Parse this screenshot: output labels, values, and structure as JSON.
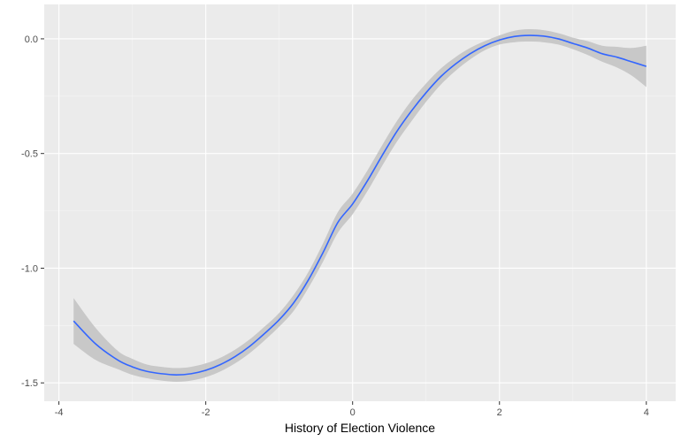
{
  "chart_data": {
    "type": "line",
    "title": "",
    "xlabel": "History of Election Violence",
    "ylabel": "",
    "xlim": [
      -4.2,
      4.4
    ],
    "ylim": [
      -1.58,
      0.15
    ],
    "xticks": [
      -4,
      -2,
      0,
      2,
      4
    ],
    "yticks": [
      0.0,
      -0.5,
      -1.0,
      -1.5
    ],
    "xtick_labels": [
      "-4",
      "-2",
      "0",
      "2",
      "4"
    ],
    "ytick_labels": [
      "0.0",
      "-0.5",
      "-1.0",
      "-1.5"
    ],
    "grid": true,
    "legend": "none",
    "colors": {
      "panel": "#ebebeb",
      "grid_major": "#ffffff",
      "line": "#3366ff",
      "ribbon": "#c8c8c8",
      "tick_mark": "#333333"
    },
    "series": [
      {
        "x": [
          -3.8,
          -3.5,
          -3.2,
          -3.0,
          -2.8,
          -2.6,
          -2.4,
          -2.2,
          -2.0,
          -1.8,
          -1.6,
          -1.4,
          -1.2,
          -1.0,
          -0.8,
          -0.6,
          -0.4,
          -0.2,
          0.0,
          0.2,
          0.4,
          0.6,
          0.8,
          1.0,
          1.2,
          1.4,
          1.6,
          1.8,
          2.0,
          2.2,
          2.4,
          2.6,
          2.8,
          3.0,
          3.2,
          3.4,
          3.6,
          3.8,
          4.0
        ],
        "y": [
          -1.23,
          -1.33,
          -1.4,
          -1.43,
          -1.45,
          -1.46,
          -1.465,
          -1.46,
          -1.445,
          -1.42,
          -1.385,
          -1.34,
          -1.285,
          -1.225,
          -1.15,
          -1.05,
          -0.93,
          -0.8,
          -0.72,
          -0.62,
          -0.51,
          -0.405,
          -0.315,
          -0.235,
          -0.165,
          -0.11,
          -0.065,
          -0.03,
          -0.005,
          0.01,
          0.015,
          0.012,
          0.0,
          -0.02,
          -0.04,
          -0.065,
          -0.08,
          -0.1,
          -0.12
        ],
        "lower": [
          -1.33,
          -1.4,
          -1.44,
          -1.465,
          -1.48,
          -1.49,
          -1.495,
          -1.49,
          -1.475,
          -1.45,
          -1.415,
          -1.37,
          -1.315,
          -1.255,
          -1.185,
          -1.085,
          -0.97,
          -0.845,
          -0.765,
          -0.665,
          -0.555,
          -0.45,
          -0.36,
          -0.275,
          -0.2,
          -0.14,
          -0.09,
          -0.05,
          -0.025,
          -0.015,
          -0.012,
          -0.015,
          -0.025,
          -0.045,
          -0.07,
          -0.1,
          -0.125,
          -0.16,
          -0.21
        ],
        "upper": [
          -1.13,
          -1.26,
          -1.36,
          -1.395,
          -1.42,
          -1.43,
          -1.435,
          -1.43,
          -1.415,
          -1.39,
          -1.355,
          -1.31,
          -1.255,
          -1.195,
          -1.115,
          -1.015,
          -0.89,
          -0.755,
          -0.675,
          -0.575,
          -0.465,
          -0.36,
          -0.27,
          -0.195,
          -0.13,
          -0.08,
          -0.04,
          -0.01,
          0.015,
          0.035,
          0.042,
          0.038,
          0.025,
          0.005,
          -0.01,
          -0.03,
          -0.035,
          -0.04,
          -0.03
        ]
      }
    ]
  }
}
